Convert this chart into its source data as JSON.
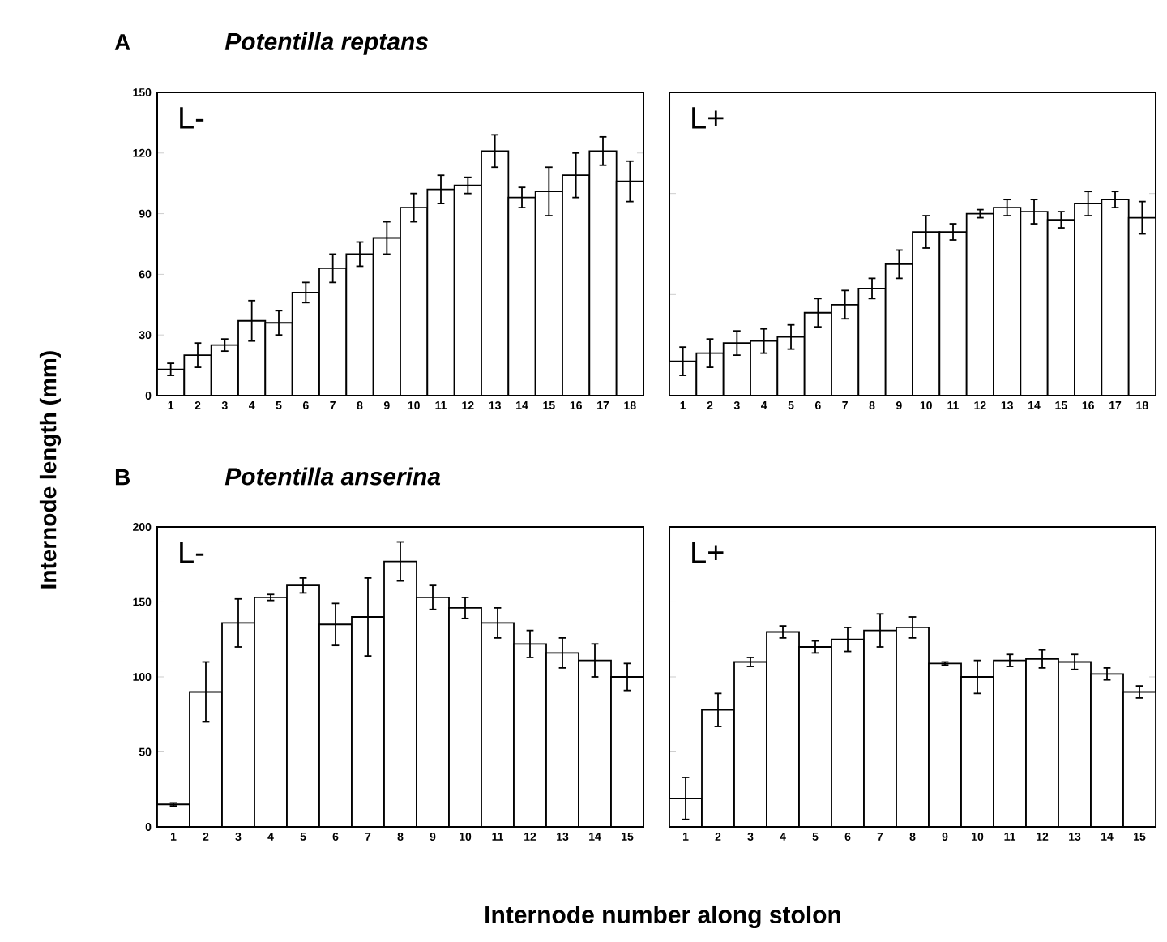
{
  "chart_data": [
    {
      "type": "bar",
      "title": "A",
      "subtitle": "Potentilla reptans",
      "annotations": [
        "L-"
      ],
      "categories": [
        "1",
        "2",
        "3",
        "4",
        "5",
        "6",
        "7",
        "8",
        "9",
        "10",
        "11",
        "12",
        "13",
        "14",
        "15",
        "16",
        "17",
        "18"
      ],
      "values": [
        13,
        20,
        25,
        37,
        36,
        51,
        63,
        70,
        78,
        93,
        102,
        104,
        121,
        98,
        101,
        109,
        121,
        106
      ],
      "errors": [
        3,
        6,
        3,
        10,
        6,
        5,
        7,
        6,
        8,
        7,
        7,
        4,
        8,
        5,
        12,
        11,
        7,
        10
      ],
      "color": "#ffffff",
      "ylim": [
        0,
        150
      ],
      "yticks": [
        0,
        30,
        60,
        90,
        120,
        150
      ]
    },
    {
      "type": "bar",
      "annotations": [
        "L+"
      ],
      "categories": [
        "1",
        "2",
        "3",
        "4",
        "5",
        "6",
        "7",
        "8",
        "9",
        "10",
        "11",
        "12",
        "13",
        "14",
        "15",
        "16",
        "17",
        "18"
      ],
      "values": [
        17,
        21,
        26,
        27,
        29,
        41,
        45,
        53,
        65,
        81,
        81,
        90,
        93,
        91,
        87,
        95,
        97,
        88
      ],
      "errors": [
        7,
        7,
        6,
        6,
        6,
        7,
        7,
        5,
        7,
        8,
        4,
        2,
        4,
        6,
        4,
        6,
        4,
        8
      ],
      "color": "#ffffff",
      "ylim": [
        0,
        150
      ],
      "yticks": [
        50,
        100
      ],
      "tick_labels": "x"
    },
    {
      "type": "bar",
      "title": "B",
      "subtitle": "Potentilla anserina",
      "annotations": [
        "L-"
      ],
      "xlabel": "Internode number along stolon",
      "ylabel": "Internode length (mm)",
      "categories": [
        "1",
        "2",
        "3",
        "4",
        "5",
        "6",
        "7",
        "8",
        "9",
        "10",
        "11",
        "12",
        "13",
        "14",
        "15"
      ],
      "values": [
        15,
        90,
        136,
        153,
        161,
        135,
        140,
        177,
        153,
        146,
        136,
        122,
        116,
        111,
        100
      ],
      "errors": [
        1,
        20,
        16,
        2,
        5,
        14,
        26,
        13,
        8,
        7,
        10,
        9,
        10,
        11,
        9
      ],
      "color": "#ffffff",
      "ylim": [
        0,
        200
      ],
      "yticks": [
        0,
        50,
        100,
        150,
        200
      ]
    },
    {
      "type": "bar",
      "annotations": [
        "L+"
      ],
      "categories": [
        "1",
        "2",
        "3",
        "4",
        "5",
        "6",
        "7",
        "8",
        "9",
        "10",
        "11",
        "12",
        "13",
        "14",
        "15"
      ],
      "values": [
        19,
        78,
        110,
        130,
        120,
        125,
        131,
        133,
        109,
        100,
        111,
        112,
        110,
        102,
        90
      ],
      "errors": [
        14,
        11,
        3,
        4,
        4,
        8,
        11,
        7,
        1,
        11,
        4,
        6,
        5,
        4,
        4
      ],
      "color": "#ffffff",
      "ylim": [
        0,
        200
      ],
      "yticks": [
        50,
        100,
        150
      ],
      "tick_labels": "x"
    }
  ]
}
